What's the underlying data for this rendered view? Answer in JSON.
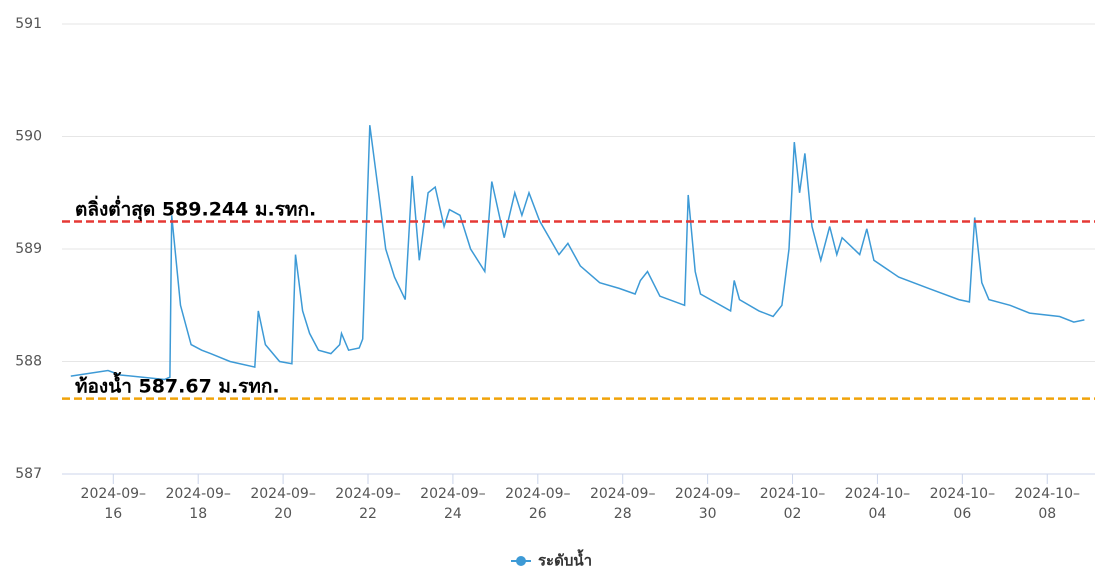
{
  "chart_data": {
    "type": "line",
    "x": [
      "2024-09-15T00",
      "2024-09-15T21",
      "2024-09-16T04",
      "2024-09-17T05",
      "2024-09-17T08",
      "2024-09-17T09",
      "2024-09-17T14",
      "2024-09-17T20",
      "2024-09-18T02",
      "2024-09-18T07",
      "2024-09-18T18",
      "2024-09-19T08",
      "2024-09-19T10",
      "2024-09-19T14",
      "2024-09-19T22",
      "2024-09-20T05",
      "2024-09-20T07",
      "2024-09-20T11",
      "2024-09-20T15",
      "2024-09-20T20",
      "2024-09-21T03",
      "2024-09-21T08",
      "2024-09-21T09",
      "2024-09-21T13",
      "2024-09-21T19",
      "2024-09-21T21",
      "2024-09-22T01",
      "2024-09-22T06",
      "2024-09-22T10",
      "2024-09-22T15",
      "2024-09-22T21",
      "2024-09-23T01",
      "2024-09-23T05",
      "2024-09-23T10",
      "2024-09-23T14",
      "2024-09-23T19",
      "2024-09-23T22",
      "2024-09-24T04",
      "2024-09-24T10",
      "2024-09-24T18",
      "2024-09-24T22",
      "2024-09-25T05",
      "2024-09-25T11",
      "2024-09-25T15",
      "2024-09-25T19",
      "2024-09-26T01",
      "2024-09-26T12",
      "2024-09-26T17",
      "2024-09-27T00",
      "2024-09-27T11",
      "2024-09-27T22",
      "2024-09-28T07",
      "2024-09-28T10",
      "2024-09-28T14",
      "2024-09-28T21",
      "2024-09-29T11",
      "2024-09-29T13",
      "2024-09-29T17",
      "2024-09-29T20",
      "2024-09-30T13",
      "2024-09-30T15",
      "2024-09-30T18",
      "2024-10-01T05",
      "2024-10-01T13",
      "2024-10-01T18",
      "2024-10-01T22",
      "2024-10-02T01",
      "2024-10-02T04",
      "2024-10-02T07",
      "2024-10-02T11",
      "2024-10-02T16",
      "2024-10-02T21",
      "2024-10-03T01",
      "2024-10-03T04",
      "2024-10-03T14",
      "2024-10-03T18",
      "2024-10-03T22",
      "2024-10-04T12",
      "2024-10-05T05",
      "2024-10-05T22",
      "2024-10-06T04",
      "2024-10-06T07",
      "2024-10-06T11",
      "2024-10-06T15",
      "2024-10-07T03",
      "2024-10-07T14",
      "2024-10-08T07",
      "2024-10-08T15",
      "2024-10-08T21"
    ],
    "series": [
      {
        "name": "ระดับน้ำ",
        "color": "#3d9ad6",
        "values": [
          587.87,
          587.92,
          587.88,
          587.84,
          587.86,
          589.3,
          588.5,
          588.15,
          588.1,
          588.07,
          588.0,
          587.95,
          588.45,
          588.15,
          588.0,
          587.98,
          588.95,
          588.45,
          588.25,
          588.1,
          588.07,
          588.15,
          588.25,
          588.1,
          588.12,
          588.2,
          590.1,
          589.5,
          589.0,
          588.75,
          588.55,
          589.65,
          588.9,
          589.5,
          589.55,
          589.2,
          589.35,
          589.3,
          589.0,
          588.8,
          589.6,
          589.1,
          589.5,
          589.3,
          589.5,
          589.25,
          588.95,
          589.05,
          588.85,
          588.7,
          588.65,
          588.6,
          588.72,
          588.8,
          588.58,
          588.5,
          589.48,
          588.8,
          588.6,
          588.45,
          588.72,
          588.55,
          588.45,
          588.4,
          588.5,
          589.0,
          589.95,
          589.5,
          589.85,
          589.2,
          588.9,
          589.2,
          588.95,
          589.1,
          588.95,
          589.18,
          588.9,
          588.75,
          588.65,
          588.55,
          588.53,
          589.28,
          588.7,
          588.55,
          588.5,
          588.43,
          588.4,
          588.35,
          588.37
        ]
      }
    ],
    "xlim": [
      "2024-09-14T19",
      "2024-10-09T03"
    ],
    "xticks": [
      {
        "value": "2024-09-16T00",
        "label": "2024-09–16"
      },
      {
        "value": "2024-09-18T00",
        "label": "2024-09–18"
      },
      {
        "value": "2024-09-20T00",
        "label": "2024-09–20"
      },
      {
        "value": "2024-09-22T00",
        "label": "2024-09–22"
      },
      {
        "value": "2024-09-24T00",
        "label": "2024-09–24"
      },
      {
        "value": "2024-09-26T00",
        "label": "2024-09–26"
      },
      {
        "value": "2024-09-28T00",
        "label": "2024-09–28"
      },
      {
        "value": "2024-09-30T00",
        "label": "2024-09–30"
      },
      {
        "value": "2024-10-02T00",
        "label": "2024-10–02"
      },
      {
        "value": "2024-10-04T00",
        "label": "2024-10–04"
      },
      {
        "value": "2024-10-06T00",
        "label": "2024-10–06"
      },
      {
        "value": "2024-10-08T00",
        "label": "2024-10–08"
      }
    ],
    "ylim": [
      587,
      591
    ],
    "yticks": [
      587,
      588,
      589,
      590,
      591
    ],
    "grid": true,
    "reference_lines": [
      {
        "value": 589.244,
        "label": "ตลิ่งต่ำสุด 589.244 ม.รทก.",
        "color": "#e53935"
      },
      {
        "value": 587.67,
        "label": "ท้องน้ำ 587.67 ม.รทก.",
        "color": "#f0a30a"
      }
    ]
  }
}
